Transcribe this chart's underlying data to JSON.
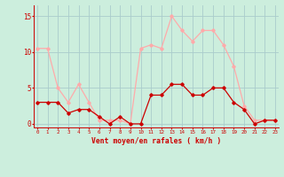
{
  "x": [
    0,
    1,
    2,
    3,
    4,
    5,
    6,
    7,
    8,
    9,
    10,
    11,
    12,
    13,
    14,
    15,
    16,
    17,
    18,
    19,
    20,
    21,
    22,
    23
  ],
  "rafales": [
    10.5,
    10.5,
    5,
    3,
    5.5,
    3,
    0.5,
    0.5,
    0.5,
    0,
    10.5,
    11,
    10.5,
    15,
    13,
    11.5,
    13,
    13,
    11,
    8,
    2.5,
    0.5,
    0.5,
    0.5
  ],
  "moyen": [
    3,
    3,
    3,
    1.5,
    2,
    2,
    1,
    0,
    1,
    0,
    0,
    4,
    4,
    5.5,
    5.5,
    4,
    4,
    5,
    5,
    3,
    2,
    0,
    0.5,
    0.5
  ],
  "color_rafales": "#ffaaaa",
  "color_moyen": "#cc0000",
  "bg_color": "#cceedd",
  "grid_color": "#aacccc",
  "xlabel": "Vent moyen/en rafales ( km/h )",
  "ylim": [
    -0.5,
    16.5
  ],
  "yticks": [
    0,
    5,
    10,
    15
  ],
  "xlim": [
    -0.3,
    23.3
  ]
}
